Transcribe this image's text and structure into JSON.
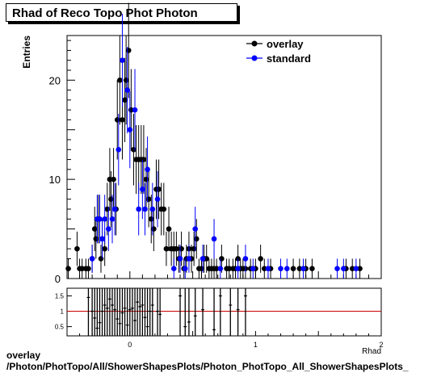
{
  "title": "Rhad of Reco Topo Phot Photon",
  "ylabel": "Entries",
  "xlabel": "Rhad",
  "footer": {
    "line1": "overlay",
    "line2": "/Photon/PhotTopo/All/ShowerShapesPlots/Photon_PhotTopo_All_ShowerShapesPlots_"
  },
  "colors": {
    "overlay": "#000000",
    "standard": "#0000ff",
    "ratio_line": "#cc0000"
  },
  "chart_data": {
    "type": "scatter",
    "title": "Rhad of Reco Topo Phot Photon",
    "xlabel": "Rhad",
    "ylabel": "Entries",
    "xlim": [
      -0.5,
      2.0
    ],
    "ylim": [
      0,
      24.5
    ],
    "legend": "top-right",
    "main_yticks": [
      0,
      10,
      20
    ],
    "series": [
      {
        "name": "overlay",
        "points": [
          [
            -0.49,
            1
          ],
          [
            -0.42,
            3
          ],
          [
            -0.4,
            1
          ],
          [
            -0.38,
            1
          ],
          [
            -0.35,
            1
          ],
          [
            -0.33,
            1
          ],
          [
            -0.3,
            2
          ],
          [
            -0.28,
            5
          ],
          [
            -0.27,
            4
          ],
          [
            -0.25,
            6
          ],
          [
            -0.23,
            2
          ],
          [
            -0.22,
            4
          ],
          [
            -0.2,
            3
          ],
          [
            -0.18,
            7
          ],
          [
            -0.16,
            10
          ],
          [
            -0.15,
            8
          ],
          [
            -0.13,
            10
          ],
          [
            -0.11,
            7
          ],
          [
            -0.1,
            16
          ],
          [
            -0.08,
            20
          ],
          [
            -0.06,
            16
          ],
          [
            -0.04,
            18
          ],
          [
            -0.03,
            20
          ],
          [
            -0.01,
            23
          ],
          [
            0.01,
            17
          ],
          [
            0.03,
            13
          ],
          [
            0.05,
            12
          ],
          [
            0.07,
            12
          ],
          [
            0.09,
            12
          ],
          [
            0.11,
            12
          ],
          [
            0.13,
            10
          ],
          [
            0.15,
            8
          ],
          [
            0.17,
            6
          ],
          [
            0.19,
            5
          ],
          [
            0.21,
            9
          ],
          [
            0.23,
            9
          ],
          [
            0.25,
            7
          ],
          [
            0.27,
            7
          ],
          [
            0.29,
            3
          ],
          [
            0.31,
            5
          ],
          [
            0.33,
            3
          ],
          [
            0.35,
            3
          ],
          [
            0.37,
            3
          ],
          [
            0.39,
            2
          ],
          [
            0.41,
            3
          ],
          [
            0.43,
            1
          ],
          [
            0.45,
            2
          ],
          [
            0.47,
            3
          ],
          [
            0.49,
            2
          ],
          [
            0.51,
            3
          ],
          [
            0.53,
            4
          ],
          [
            0.55,
            1
          ],
          [
            0.57,
            1
          ],
          [
            0.59,
            2
          ],
          [
            0.61,
            2
          ],
          [
            0.63,
            1
          ],
          [
            0.65,
            1
          ],
          [
            0.67,
            1
          ],
          [
            0.69,
            1
          ],
          [
            0.73,
            2
          ],
          [
            0.77,
            1
          ],
          [
            0.79,
            1
          ],
          [
            0.82,
            1
          ],
          [
            0.84,
            1
          ],
          [
            0.86,
            2
          ],
          [
            0.88,
            1
          ],
          [
            0.9,
            1
          ],
          [
            0.92,
            1
          ],
          [
            0.96,
            1
          ],
          [
            1.0,
            1
          ],
          [
            1.04,
            2
          ],
          [
            1.07,
            1
          ],
          [
            1.12,
            1
          ],
          [
            1.3,
            1
          ],
          [
            1.35,
            1
          ],
          [
            1.4,
            1
          ],
          [
            1.45,
            1
          ],
          [
            1.72,
            1
          ],
          [
            1.77,
            1
          ],
          [
            1.83,
            1
          ]
        ]
      },
      {
        "name": "standard",
        "points": [
          [
            -0.3,
            2
          ],
          [
            -0.26,
            6
          ],
          [
            -0.24,
            6
          ],
          [
            -0.22,
            4
          ],
          [
            -0.2,
            6
          ],
          [
            -0.17,
            5
          ],
          [
            -0.14,
            6
          ],
          [
            -0.12,
            7
          ],
          [
            -0.09,
            13
          ],
          [
            -0.06,
            22
          ],
          [
            -0.02,
            19
          ],
          [
            0.0,
            15
          ],
          [
            0.04,
            17
          ],
          [
            0.07,
            7
          ],
          [
            0.1,
            9
          ],
          [
            0.12,
            7
          ],
          [
            0.14,
            11
          ],
          [
            0.18,
            7
          ],
          [
            0.22,
            8
          ],
          [
            0.35,
            1
          ],
          [
            0.4,
            2
          ],
          [
            0.44,
            1
          ],
          [
            0.47,
            2
          ],
          [
            0.52,
            5
          ],
          [
            0.58,
            2
          ],
          [
            0.67,
            4
          ],
          [
            0.72,
            1
          ],
          [
            0.86,
            1
          ],
          [
            0.92,
            2
          ],
          [
            0.98,
            1
          ],
          [
            1.1,
            1
          ],
          [
            1.2,
            1
          ],
          [
            1.25,
            1
          ],
          [
            1.38,
            1
          ],
          [
            1.65,
            1
          ],
          [
            1.7,
            1
          ],
          [
            1.8,
            1
          ]
        ]
      }
    ],
    "ratio_panel": {
      "ylabel": "",
      "ylim": [
        0.2,
        1.75
      ],
      "yticks": [
        0.5,
        1,
        1.5
      ],
      "ytick_labels": [
        "0.5",
        "1",
        "1.5"
      ],
      "reference_line": 1,
      "points": [
        [
          -0.33,
          1.45
        ],
        [
          -0.3,
          1
        ],
        [
          -0.28,
          0.78
        ],
        [
          -0.26,
          0.45
        ],
        [
          -0.24,
          0.63
        ],
        [
          -0.22,
          1.0
        ],
        [
          -0.2,
          1.2
        ],
        [
          -0.18,
          1.1
        ],
        [
          -0.16,
          1.4
        ],
        [
          -0.14,
          1.2
        ],
        [
          -0.12,
          1.05
        ],
        [
          -0.1,
          0.75
        ],
        [
          -0.08,
          0.6
        ],
        [
          -0.06,
          0.95
        ],
        [
          -0.04,
          1.1
        ],
        [
          -0.02,
          0.55
        ],
        [
          0.0,
          1.05
        ],
        [
          0.02,
          1.1
        ],
        [
          0.04,
          0.7
        ],
        [
          0.06,
          1.3
        ],
        [
          0.08,
          1.15
        ],
        [
          0.1,
          1.2
        ],
        [
          0.12,
          0.8
        ],
        [
          0.14,
          0.5
        ],
        [
          0.16,
          1.0
        ],
        [
          0.18,
          1.2
        ],
        [
          0.22,
          1.0
        ],
        [
          0.24,
          0.9
        ],
        [
          0.4,
          1.5
        ],
        [
          0.44,
          0.5
        ],
        [
          0.47,
          0.65
        ],
        [
          0.52,
          0.85
        ],
        [
          0.58,
          1.05
        ],
        [
          0.67,
          0.4
        ],
        [
          0.72,
          1.5
        ],
        [
          0.8,
          1.2
        ],
        [
          0.86,
          1.05
        ],
        [
          0.92,
          1.5
        ]
      ]
    },
    "xticks": [
      0,
      1,
      2
    ],
    "xtick_labels": [
      "0",
      "1",
      "2"
    ]
  }
}
